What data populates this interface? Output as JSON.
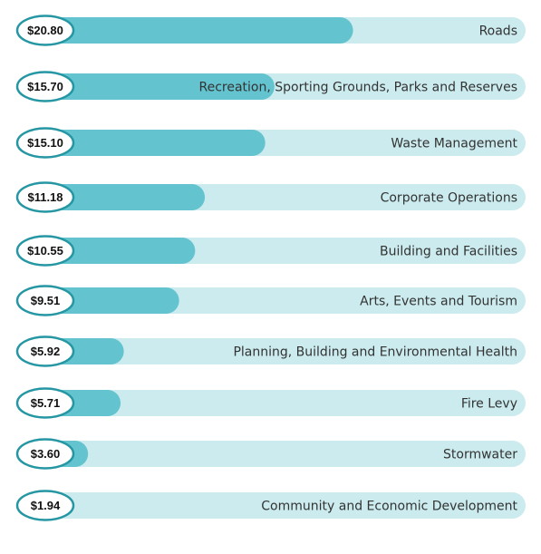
{
  "chart_data": {
    "type": "bar",
    "orientation": "horizontal",
    "categories": [
      "Roads",
      "Recreation, Sporting Grounds, Parks and Reserves",
      "Waste Management",
      "Corporate Operations",
      "Building and Facilities",
      "Arts, Events and Tourism",
      "Planning, Building and Environmental Health",
      "Fire Levy",
      "Stormwater",
      "Community and Economic Development"
    ],
    "values": [
      20.8,
      15.7,
      15.1,
      11.18,
      10.55,
      9.51,
      5.92,
      5.71,
      3.6,
      1.94
    ],
    "value_labels": [
      "$20.80",
      "$15.70",
      "$15.10",
      "$11.18",
      "$10.55",
      "$9.51",
      "$5.92",
      "$5.71",
      "$3.60",
      "$1.94"
    ],
    "title": "",
    "xlabel": "",
    "ylabel": "",
    "grid": false,
    "legend": "none",
    "colors": {
      "bar_fill": "#63c3cf",
      "track_fill": "#cbebee",
      "badge_border": "#2596a3",
      "badge_fill": "#ffffff",
      "label_text": "#333333",
      "value_text": "#111111"
    }
  }
}
